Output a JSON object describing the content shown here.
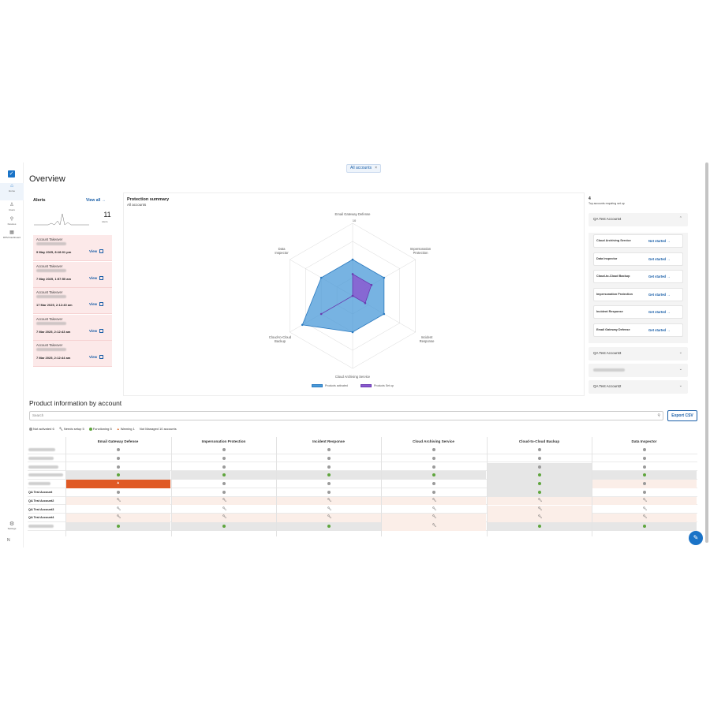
{
  "nav": {
    "home": "Home",
    "users": "Users",
    "devices": "Devices",
    "stats": "RPM Dashboard",
    "settings": "Settings",
    "user_initial": "N"
  },
  "header": {
    "account_filter": "All accounts",
    "page_title": "Overview"
  },
  "alerts": {
    "title": "Alerts",
    "view_all": "View all",
    "count": "11",
    "count_label": "Alerts",
    "items": [
      {
        "title": "Account Takeover",
        "date": "9 May 2025, 8:18:01 pm",
        "action": "View"
      },
      {
        "title": "Account Takeover",
        "date": "7 May 2025, 1:57:50 am",
        "action": "View"
      },
      {
        "title": "Account Takeover",
        "date": "17 Mar 2025, 2:12:40 am",
        "action": "View"
      },
      {
        "title": "Account Takeover",
        "date": "7 Mar 2025, 2:12:43 am",
        "action": "View"
      },
      {
        "title": "Account Takeover",
        "date": "7 Mar 2025, 2:12:44 am",
        "action": "View"
      }
    ]
  },
  "protection": {
    "title": "Protection summary",
    "subtitle": "All accounts",
    "chart_data": {
      "type": "radar",
      "axes": [
        "Email Gateway Defense",
        "Impersonation Protection",
        "Incident Response",
        "Cloud Archiving Service",
        "Cloud-to-Cloud Backup",
        "Data Inspector"
      ],
      "max_label": "10",
      "max": 10,
      "series": [
        {
          "name": "Products activated",
          "color": "#4a9ad8",
          "values": [
            5,
            5,
            5,
            5,
            8,
            5
          ]
        },
        {
          "name": "Products Set up",
          "color": "#8a5ad0",
          "values": [
            3,
            3,
            2,
            0,
            5,
            0
          ]
        }
      ],
      "legend": "bottom"
    }
  },
  "setup": {
    "count": "4",
    "subtitle": "Top accounts requiring set up",
    "expanded_account": "QA Test Account4",
    "products": [
      {
        "name": "Cloud Archiving Service",
        "status": "Not started"
      },
      {
        "name": "Data Inspector",
        "status": "Get started"
      },
      {
        "name": "Cloud-to-Cloud Backup",
        "status": "Get started"
      },
      {
        "name": "Impersonation Protection",
        "status": "Get started"
      },
      {
        "name": "Incident Response",
        "status": "Get started"
      },
      {
        "name": "Email Gateway Defense",
        "status": "Get started"
      }
    ],
    "other_accounts": [
      "QA Test Account3",
      "",
      "QA Test Account2"
    ]
  },
  "product_info": {
    "title": "Product information by account",
    "search_placeholder": "Search",
    "export_label": "Export CSV",
    "statuses": [
      {
        "label": "Not activated 6",
        "color": "#9a9a9a"
      },
      {
        "label": "Needs setup 5",
        "icon": "wrench-icon"
      },
      {
        "label": "Functioning 5",
        "color": "#5fa53d"
      },
      {
        "label": "Warning 1",
        "icon": "warning-icon"
      },
      {
        "label": "Not Managed 10 accounts"
      }
    ],
    "columns": [
      "Email Gateway Defense",
      "Impersonation Protection",
      "Incident Response",
      "Cloud Archiving Service",
      "Cloud-to-Cloud Backup",
      "Data Inspector"
    ],
    "rows": [
      {
        "account": "",
        "cells": [
          "grey",
          "grey",
          "grey",
          "grey",
          "grey",
          "grey"
        ]
      },
      {
        "account": "",
        "cells": [
          "grey",
          "grey",
          "grey",
          "grey",
          "grey",
          "grey"
        ]
      },
      {
        "account": "",
        "cells": [
          "grey",
          "grey",
          "grey",
          "grey",
          "grey",
          "grey"
        ]
      },
      {
        "account": "",
        "cells": [
          "green",
          "green",
          "green",
          "green",
          "green",
          "green"
        ]
      },
      {
        "account": "",
        "cells": [
          "warning",
          "grey",
          "grey",
          "grey",
          "green",
          "grey"
        ]
      },
      {
        "account": "QA Test Account",
        "cells": [
          "grey",
          "grey",
          "grey",
          "grey",
          "green",
          "grey"
        ]
      },
      {
        "account": "QA Test Account2",
        "cells": [
          "wrench",
          "wrench",
          "wrench",
          "wrench",
          "wrench",
          "wrench"
        ]
      },
      {
        "account": "QA Test Account3",
        "cells": [
          "wrench",
          "wrench",
          "wrench",
          "wrench",
          "wrench",
          "wrench"
        ]
      },
      {
        "account": "QA Test Account4",
        "cells": [
          "wrench",
          "wrench",
          "wrench",
          "wrench",
          "wrench",
          "wrench"
        ]
      },
      {
        "account": "",
        "cells": [
          "green",
          "green",
          "green",
          "wrench",
          "green",
          "green"
        ]
      }
    ]
  }
}
